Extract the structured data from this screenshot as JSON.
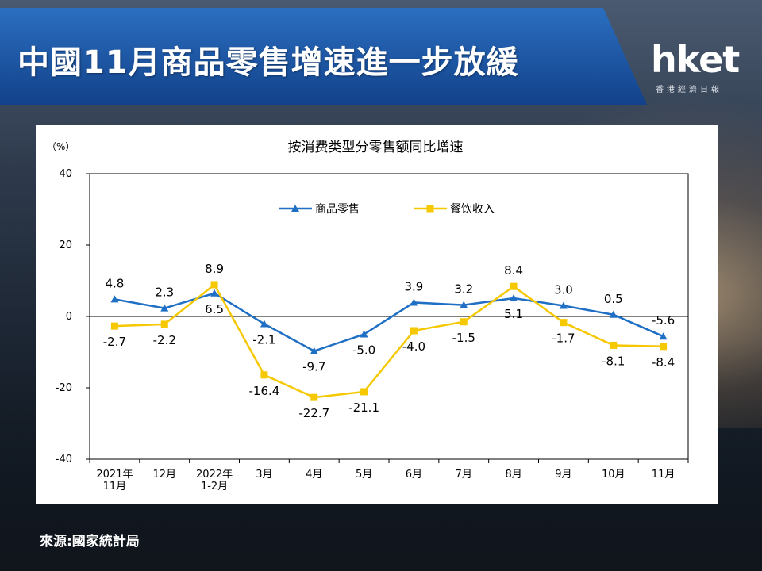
{
  "title": "中國11月商品零售增速進一步放緩",
  "logo": {
    "main": "hket",
    "sub": "香港經濟日報"
  },
  "source": "來源:國家統計局",
  "colors": {
    "banner": "#1f5aa6",
    "retail": "#1f6fc5",
    "catering": "#f5c800"
  },
  "chart_data": {
    "type": "line",
    "title": "按消费类型分零售额同比增速",
    "unit_label": "（%）",
    "ylim": [
      -40,
      40
    ],
    "yticks": [
      40,
      20,
      0,
      -20,
      -40
    ],
    "categories": [
      [
        "2021年",
        "11月"
      ],
      [
        "12月"
      ],
      [
        "2022年",
        "1-2月"
      ],
      [
        "3月"
      ],
      [
        "4月"
      ],
      [
        "5月"
      ],
      [
        "6月"
      ],
      [
        "7月"
      ],
      [
        "8月"
      ],
      [
        "9月"
      ],
      [
        "10月"
      ],
      [
        "11月"
      ]
    ],
    "legend_position": "top-center",
    "series": [
      {
        "name": "商品零售",
        "color": "#1f6fc5",
        "marker": "triangle",
        "values": [
          4.8,
          2.3,
          6.5,
          -2.1,
          -9.7,
          -5.0,
          3.9,
          3.2,
          5.1,
          3.0,
          0.5,
          -5.6
        ],
        "labels": [
          "4.8",
          "2.3",
          "6.5",
          "-2.1",
          "-9.7",
          "-5.0",
          "3.9",
          "3.2",
          "5.1",
          "3.0",
          "0.5",
          "-5.6"
        ]
      },
      {
        "name": "餐饮收入",
        "color": "#f5c800",
        "marker": "square",
        "values": [
          -2.7,
          -2.2,
          8.9,
          -16.4,
          -22.7,
          -21.1,
          -4.0,
          -1.5,
          8.4,
          -1.7,
          -8.1,
          -8.4
        ],
        "labels": [
          "-2.7",
          "-2.2",
          "8.9",
          "-16.4",
          "-22.7",
          "-21.1",
          "-4.0",
          "-1.5",
          "8.4",
          "-1.7",
          "-8.1",
          "-8.4"
        ]
      }
    ]
  }
}
